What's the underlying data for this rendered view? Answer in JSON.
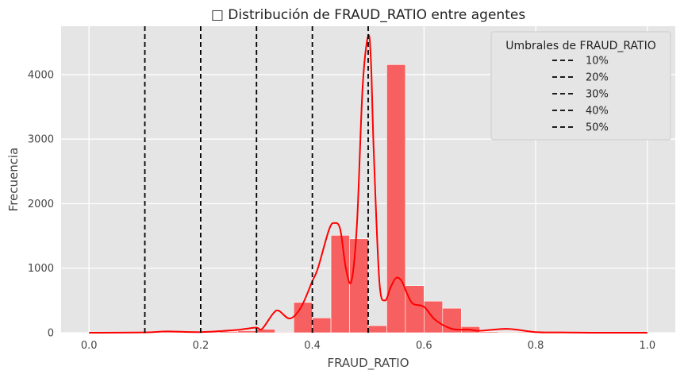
{
  "chart_data": {
    "type": "bar",
    "title": "□ Distribución de FRAUD_RATIO entre agentes",
    "xlabel": "FRAUD_RATIO",
    "ylabel": "Frecuencia",
    "xlim": [
      -0.05,
      1.05
    ],
    "ylim": [
      0,
      4750
    ],
    "x_ticks": [
      "0.0",
      "0.2",
      "0.4",
      "0.6",
      "0.8",
      "1.0"
    ],
    "x_tick_values": [
      0.0,
      0.2,
      0.4,
      0.6,
      0.8,
      1.0
    ],
    "y_ticks": [
      "0",
      "1000",
      "2000",
      "3000",
      "4000"
    ],
    "y_tick_values": [
      0,
      1000,
      2000,
      3000,
      4000
    ],
    "grid": true,
    "legend_placement": "top-right",
    "colors": {
      "bars": "#f76060",
      "kde": "#ff0000",
      "thresholds": "#000000",
      "background": "#e5e5e5"
    },
    "histogram": {
      "bin_edges": [
        0.0,
        0.0333,
        0.0667,
        0.1,
        0.1333,
        0.1667,
        0.2,
        0.2333,
        0.2667,
        0.3,
        0.3333,
        0.3667,
        0.4,
        0.4333,
        0.4667,
        0.5,
        0.5333,
        0.5667,
        0.6,
        0.6333,
        0.6667,
        0.7,
        0.7333,
        0.7667,
        0.8,
        0.8333,
        0.8667,
        0.9,
        0.9333,
        0.9667,
        1.0
      ],
      "counts": [
        5,
        2,
        3,
        5,
        10,
        8,
        12,
        18,
        30,
        55,
        10,
        470,
        230,
        1510,
        1455,
        110,
        4155,
        730,
        490,
        380,
        95,
        15,
        10,
        12,
        8,
        5,
        3,
        2,
        2,
        2
      ]
    },
    "kde": {
      "x": [
        0.0,
        0.1,
        0.14,
        0.2,
        0.26,
        0.28,
        0.3,
        0.31,
        0.33,
        0.34,
        0.36,
        0.38,
        0.4,
        0.41,
        0.43,
        0.44,
        0.45,
        0.46,
        0.47,
        0.48,
        0.49,
        0.5,
        0.505,
        0.51,
        0.52,
        0.53,
        0.54,
        0.55,
        0.56,
        0.57,
        0.58,
        0.6,
        0.62,
        0.65,
        0.68,
        0.7,
        0.75,
        0.8,
        0.85,
        0.9,
        1.0
      ],
      "y": [
        0,
        5,
        20,
        10,
        40,
        60,
        80,
        60,
        300,
        340,
        220,
        400,
        800,
        1000,
        1600,
        1700,
        1600,
        1000,
        800,
        1700,
        3800,
        4600,
        4200,
        2800,
        800,
        500,
        700,
        850,
        800,
        600,
        450,
        400,
        200,
        60,
        50,
        30,
        60,
        10,
        5,
        0,
        0
      ]
    },
    "thresholds": {
      "title": "Umbrales de FRAUD_RATIO",
      "values": [
        0.1,
        0.2,
        0.3,
        0.4,
        0.5
      ],
      "labels": [
        "10%",
        "20%",
        "30%",
        "40%",
        "50%"
      ]
    }
  }
}
